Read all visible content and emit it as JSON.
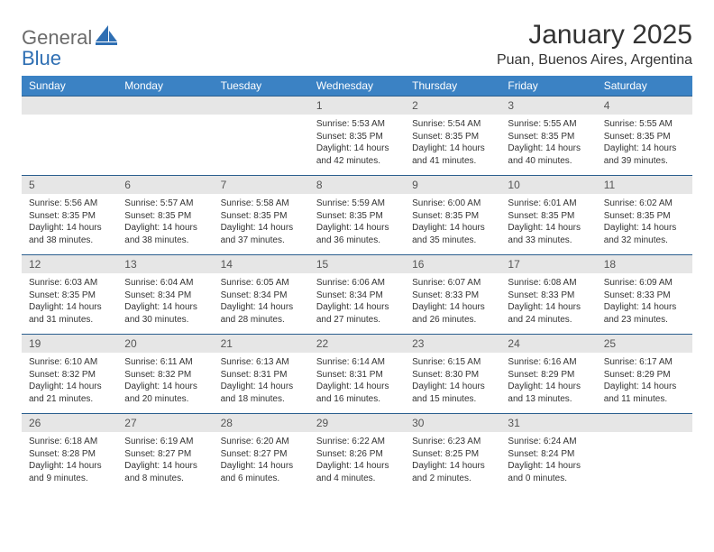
{
  "brand": {
    "text1": "General",
    "text2": "Blue"
  },
  "title": "January 2025",
  "location": "Puan, Buenos Aires, Argentina",
  "colors": {
    "header_bg": "#3b82c4",
    "header_text": "#ffffff",
    "row_border": "#2b5f8f",
    "daynum_bg": "#e6e6e6",
    "logo_gray": "#6b6b6b",
    "logo_blue": "#2f6fb3",
    "page_bg": "#ffffff",
    "text": "#333333"
  },
  "daynames": [
    "Sunday",
    "Monday",
    "Tuesday",
    "Wednesday",
    "Thursday",
    "Friday",
    "Saturday"
  ],
  "weeks": [
    [
      null,
      null,
      null,
      {
        "n": "1",
        "sr": "5:53 AM",
        "ss": "8:35 PM",
        "dl": "14 hours and 42 minutes."
      },
      {
        "n": "2",
        "sr": "5:54 AM",
        "ss": "8:35 PM",
        "dl": "14 hours and 41 minutes."
      },
      {
        "n": "3",
        "sr": "5:55 AM",
        "ss": "8:35 PM",
        "dl": "14 hours and 40 minutes."
      },
      {
        "n": "4",
        "sr": "5:55 AM",
        "ss": "8:35 PM",
        "dl": "14 hours and 39 minutes."
      }
    ],
    [
      {
        "n": "5",
        "sr": "5:56 AM",
        "ss": "8:35 PM",
        "dl": "14 hours and 38 minutes."
      },
      {
        "n": "6",
        "sr": "5:57 AM",
        "ss": "8:35 PM",
        "dl": "14 hours and 38 minutes."
      },
      {
        "n": "7",
        "sr": "5:58 AM",
        "ss": "8:35 PM",
        "dl": "14 hours and 37 minutes."
      },
      {
        "n": "8",
        "sr": "5:59 AM",
        "ss": "8:35 PM",
        "dl": "14 hours and 36 minutes."
      },
      {
        "n": "9",
        "sr": "6:00 AM",
        "ss": "8:35 PM",
        "dl": "14 hours and 35 minutes."
      },
      {
        "n": "10",
        "sr": "6:01 AM",
        "ss": "8:35 PM",
        "dl": "14 hours and 33 minutes."
      },
      {
        "n": "11",
        "sr": "6:02 AM",
        "ss": "8:35 PM",
        "dl": "14 hours and 32 minutes."
      }
    ],
    [
      {
        "n": "12",
        "sr": "6:03 AM",
        "ss": "8:35 PM",
        "dl": "14 hours and 31 minutes."
      },
      {
        "n": "13",
        "sr": "6:04 AM",
        "ss": "8:34 PM",
        "dl": "14 hours and 30 minutes."
      },
      {
        "n": "14",
        "sr": "6:05 AM",
        "ss": "8:34 PM",
        "dl": "14 hours and 28 minutes."
      },
      {
        "n": "15",
        "sr": "6:06 AM",
        "ss": "8:34 PM",
        "dl": "14 hours and 27 minutes."
      },
      {
        "n": "16",
        "sr": "6:07 AM",
        "ss": "8:33 PM",
        "dl": "14 hours and 26 minutes."
      },
      {
        "n": "17",
        "sr": "6:08 AM",
        "ss": "8:33 PM",
        "dl": "14 hours and 24 minutes."
      },
      {
        "n": "18",
        "sr": "6:09 AM",
        "ss": "8:33 PM",
        "dl": "14 hours and 23 minutes."
      }
    ],
    [
      {
        "n": "19",
        "sr": "6:10 AM",
        "ss": "8:32 PM",
        "dl": "14 hours and 21 minutes."
      },
      {
        "n": "20",
        "sr": "6:11 AM",
        "ss": "8:32 PM",
        "dl": "14 hours and 20 minutes."
      },
      {
        "n": "21",
        "sr": "6:13 AM",
        "ss": "8:31 PM",
        "dl": "14 hours and 18 minutes."
      },
      {
        "n": "22",
        "sr": "6:14 AM",
        "ss": "8:31 PM",
        "dl": "14 hours and 16 minutes."
      },
      {
        "n": "23",
        "sr": "6:15 AM",
        "ss": "8:30 PM",
        "dl": "14 hours and 15 minutes."
      },
      {
        "n": "24",
        "sr": "6:16 AM",
        "ss": "8:29 PM",
        "dl": "14 hours and 13 minutes."
      },
      {
        "n": "25",
        "sr": "6:17 AM",
        "ss": "8:29 PM",
        "dl": "14 hours and 11 minutes."
      }
    ],
    [
      {
        "n": "26",
        "sr": "6:18 AM",
        "ss": "8:28 PM",
        "dl": "14 hours and 9 minutes."
      },
      {
        "n": "27",
        "sr": "6:19 AM",
        "ss": "8:27 PM",
        "dl": "14 hours and 8 minutes."
      },
      {
        "n": "28",
        "sr": "6:20 AM",
        "ss": "8:27 PM",
        "dl": "14 hours and 6 minutes."
      },
      {
        "n": "29",
        "sr": "6:22 AM",
        "ss": "8:26 PM",
        "dl": "14 hours and 4 minutes."
      },
      {
        "n": "30",
        "sr": "6:23 AM",
        "ss": "8:25 PM",
        "dl": "14 hours and 2 minutes."
      },
      {
        "n": "31",
        "sr": "6:24 AM",
        "ss": "8:24 PM",
        "dl": "14 hours and 0 minutes."
      },
      null
    ]
  ],
  "labels": {
    "sunrise": "Sunrise:",
    "sunset": "Sunset:",
    "daylight": "Daylight:"
  }
}
